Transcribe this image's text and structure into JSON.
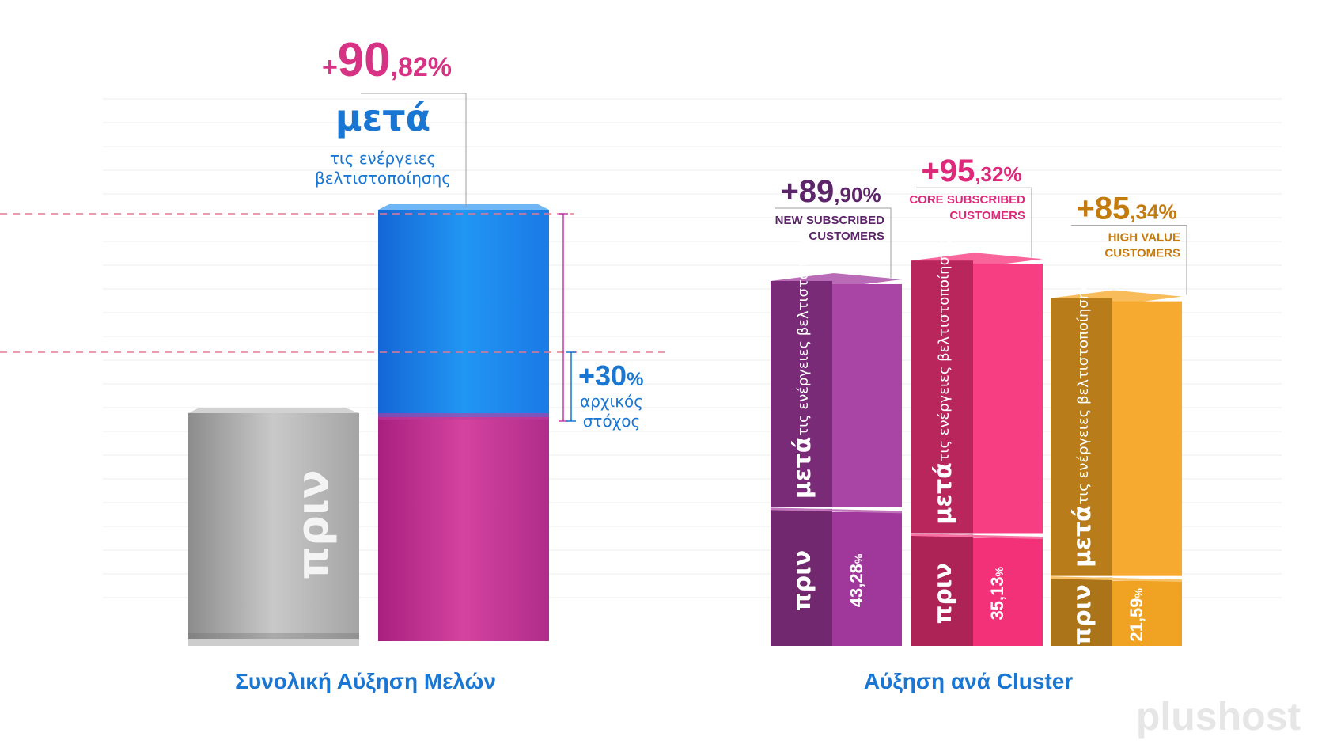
{
  "chart_data": [
    {
      "type": "bar",
      "title": "Συνολική Αύξηση Μελών",
      "before_label": "πριν",
      "after_label": "μετά",
      "after_sublabel_line1": "τις ενέργειες",
      "after_sublabel_line2": "βελτιστοποίησης",
      "increase": {
        "prefix": "+",
        "int": "90",
        "dec": ",82%"
      },
      "target": {
        "value": "+30",
        "unit": "%",
        "label_line1": "αρχικός",
        "label_line2": "στόχος"
      },
      "colors": {
        "before": "#9e9e9e",
        "target_segment": "#c23ba6",
        "increase_segment": "#1e88e5",
        "accent": "#d63384",
        "primary": "#1976d2"
      }
    },
    {
      "type": "bar",
      "title": "Αύξηση ανά Cluster",
      "before_label": "πριν",
      "after_label": "μετά",
      "after_sublabel": "τις ενέργειες βελτιστοποίησης",
      "clusters": [
        {
          "name_line1": "NEW SUBSCRIBED",
          "name_line2": "CUSTOMERS",
          "increase_int": "+89",
          "increase_dec": ",90%",
          "before_value": "43,28",
          "before_unit": "%",
          "before_num": 43.28,
          "after_num": 89.9,
          "color": "#a3399f",
          "title_color": "#5c2569"
        },
        {
          "name_line1": "CORE SUBSCRIBED",
          "name_line2": "CUSTOMERS",
          "increase_int": "+95",
          "increase_dec": ",32%",
          "before_value": "35,13",
          "before_unit": "%",
          "before_num": 35.13,
          "after_num": 95.32,
          "color": "#f7327a",
          "title_color": "#e0287a"
        },
        {
          "name_line1": "HIGH VALUE",
          "name_line2": "CUSTOMERS",
          "increase_int": "+85",
          "increase_dec": ",34%",
          "before_value": "21,59",
          "before_unit": "%",
          "before_num": 21.59,
          "after_num": 85.34,
          "color": "#f5a623",
          "title_color": "#c47a0c"
        }
      ]
    }
  ],
  "watermark": {
    "text": "plushost"
  }
}
